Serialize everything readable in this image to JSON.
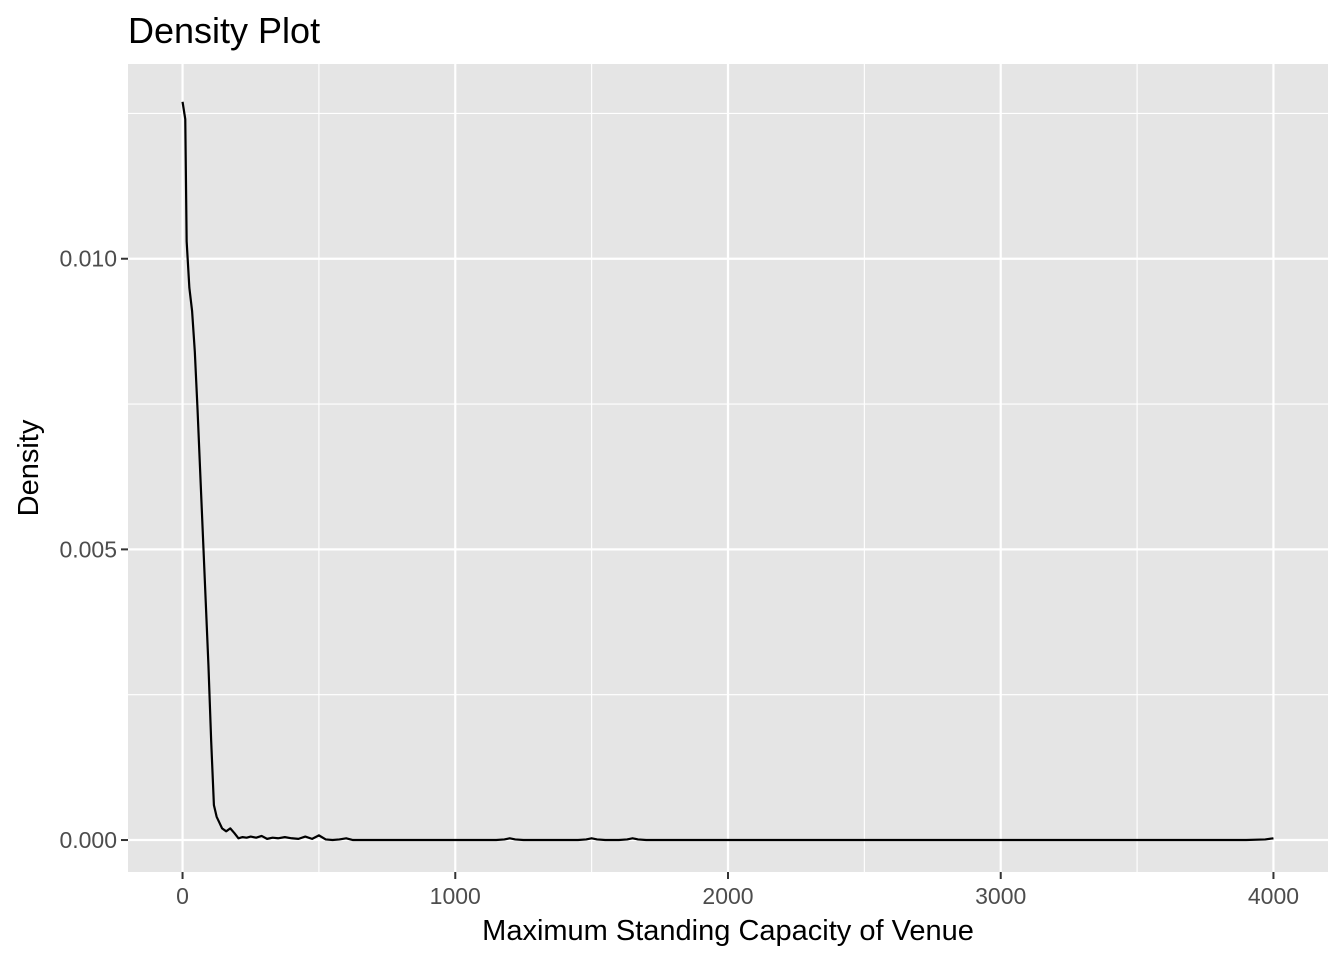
{
  "chart_data": {
    "type": "line",
    "title": "Density Plot",
    "xlabel": "Maximum Standing Capacity of Venue",
    "ylabel": "Density",
    "xlim": [
      -200,
      4200
    ],
    "ylim": [
      -0.00055,
      0.01335
    ],
    "x_ticks": [
      0,
      1000,
      2000,
      3000,
      4000
    ],
    "x_tick_labels": [
      "0",
      "1000",
      "2000",
      "3000",
      "4000"
    ],
    "x_minor_ticks": [
      500,
      1500,
      2500,
      3500
    ],
    "y_ticks": [
      0.0,
      0.005,
      0.01
    ],
    "y_tick_labels": [
      "0.000",
      "0.005",
      "0.010"
    ],
    "y_minor_ticks": [
      0.0025,
      0.0075,
      0.0125
    ],
    "grid": true,
    "colors": {
      "panel": "#e5e5e5",
      "grid": "#ffffff",
      "line": "#000000",
      "tick_text": "#4d4d4d"
    },
    "series": [
      {
        "x": [
          0,
          10,
          15,
          25,
          35,
          45,
          55,
          65,
          75,
          85,
          95,
          105,
          115,
          125,
          135,
          145,
          160,
          175,
          190,
          205,
          220,
          235,
          250,
          270,
          290,
          310,
          330,
          350,
          375,
          400,
          425,
          450,
          475,
          500,
          525,
          550,
          575,
          600,
          625,
          650,
          700,
          800,
          900,
          1000,
          1100,
          1150,
          1180,
          1200,
          1220,
          1250,
          1300,
          1400,
          1450,
          1480,
          1500,
          1520,
          1550,
          1600,
          1630,
          1650,
          1670,
          1700,
          1800,
          2000,
          2500,
          3000,
          3500,
          3900,
          3970,
          4000
        ],
        "y": [
          0.0127,
          0.0124,
          0.0103,
          0.0095,
          0.0091,
          0.0084,
          0.0074,
          0.0063,
          0.0052,
          0.0041,
          0.003,
          0.0017,
          0.0006,
          0.0004,
          0.0003,
          0.0002,
          0.00015,
          0.0002,
          0.00012,
          3e-05,
          5e-05,
          4e-05,
          6e-05,
          4e-05,
          7e-05,
          2e-05,
          4e-05,
          3e-05,
          5e-05,
          3e-05,
          2e-05,
          6e-05,
          2e-05,
          8e-05,
          1e-05,
          0.0,
          1e-05,
          3e-05,
          0.0,
          0.0,
          0.0,
          0.0,
          0.0,
          0.0,
          0.0,
          0.0,
          1e-05,
          3e-05,
          1e-05,
          0.0,
          0.0,
          0.0,
          0.0,
          1e-05,
          3e-05,
          1e-05,
          0.0,
          0.0,
          1e-05,
          3e-05,
          1e-05,
          0.0,
          0.0,
          0.0,
          0.0,
          0.0,
          0.0,
          0.0,
          1e-05,
          3e-05
        ]
      }
    ]
  }
}
